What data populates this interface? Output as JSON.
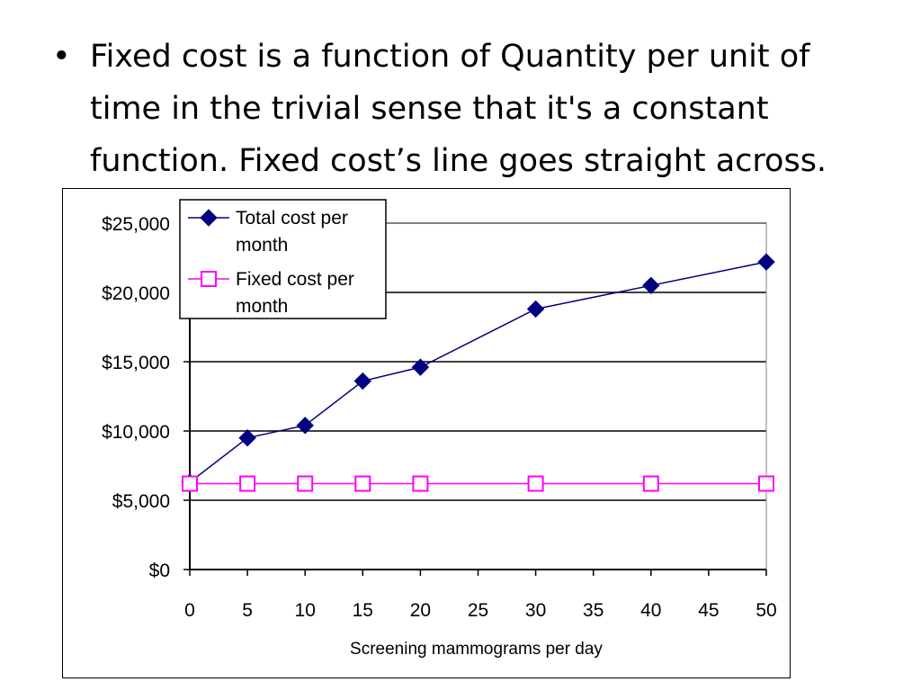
{
  "slide": {
    "bullet_symbol": "•",
    "text": "Fixed cost is a function of Quantity per unit of time in the trivial sense that it's a constant function.  Fixed cost’s line goes straight across."
  },
  "chart_data": {
    "type": "line",
    "title": "",
    "xlabel": "Screening mammograms per day",
    "ylabel": "",
    "x_ticks": [
      0,
      5,
      10,
      15,
      20,
      25,
      30,
      35,
      40,
      45,
      50
    ],
    "y_ticks": [
      "$0",
      "$5,000",
      "$10,000",
      "$15,000",
      "$20,000",
      "$25,000"
    ],
    "y_tick_values": [
      0,
      5000,
      10000,
      15000,
      20000,
      25000
    ],
    "xlim": [
      0,
      50
    ],
    "ylim": [
      0,
      25000
    ],
    "grid": "horizontal major",
    "legend_position": "top-left",
    "series": [
      {
        "name": "Total cost per month",
        "name_lines": [
          "Total cost per",
          "month"
        ],
        "marker": "filled-diamond",
        "color": "#000080",
        "x": [
          0,
          5,
          10,
          15,
          20,
          30,
          40,
          50
        ],
        "y": [
          6300,
          9500,
          10400,
          13600,
          14600,
          18800,
          20500,
          22200
        ]
      },
      {
        "name": "Fixed cost per month",
        "name_lines": [
          "Fixed cost per",
          "month"
        ],
        "marker": "hollow-square",
        "color": "#ff00ff",
        "x": [
          0,
          5,
          10,
          15,
          20,
          30,
          40,
          50
        ],
        "y": [
          6200,
          6200,
          6200,
          6200,
          6200,
          6200,
          6200,
          6200
        ]
      }
    ]
  }
}
